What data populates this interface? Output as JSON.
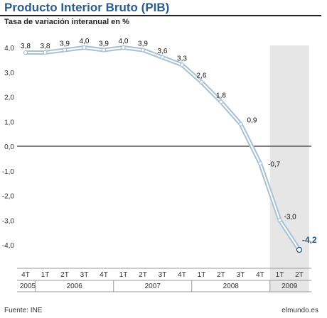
{
  "header": {
    "title": "Producto Interior Bruto (PIB)",
    "subtitle": "Tasa de variación interanual en %"
  },
  "footer": {
    "source": "Fuente: INE",
    "credit": "elmundo.es"
  },
  "colors": {
    "title": "#2a5d8f",
    "line_outer": "#a9c0d4",
    "line_inner": "#ffffff",
    "highlight_label": "#1f4f8c",
    "shaded_band": "#e6e6e6",
    "zero_line": "#555555"
  },
  "chart_data": {
    "type": "line",
    "title": "Producto Interior Bruto (PIB)",
    "ylabel": "",
    "xlabel": "",
    "ylim": [
      -5.0,
      4.0
    ],
    "yticks": [
      4.0,
      3.0,
      2.0,
      1.0,
      0.0,
      -1.0,
      -2.0,
      -3.0,
      -4.0
    ],
    "ytick_labels": [
      "4,0",
      "3,0",
      "2,0",
      "1,0",
      "0,0",
      "-1,0",
      "-2,0",
      "-3,0",
      "-4,0"
    ],
    "categories": [
      "4T",
      "1T",
      "2T",
      "3T",
      "4T",
      "1T",
      "2T",
      "3T",
      "4T",
      "1T",
      "2T",
      "3T",
      "4T",
      "1T",
      "2T"
    ],
    "years": [
      {
        "label": "2005",
        "start": 0,
        "end": 0
      },
      {
        "label": "2006",
        "start": 1,
        "end": 4
      },
      {
        "label": "2007",
        "start": 5,
        "end": 8
      },
      {
        "label": "2008",
        "start": 9,
        "end": 12
      },
      {
        "label": "2009",
        "start": 13,
        "end": 14
      }
    ],
    "shaded_year": "2009",
    "series": [
      {
        "values": [
          3.8,
          3.8,
          3.9,
          4.0,
          3.9,
          4.0,
          3.9,
          3.6,
          3.3,
          2.6,
          1.8,
          0.9,
          -0.7,
          -3.0,
          -4.2
        ],
        "labels": [
          "3,8",
          "3,8",
          "3,9",
          "4,0",
          "3,9",
          "4,0",
          "3,9",
          "3,6",
          "3,3",
          "2,6",
          "1,8",
          "0,9",
          "-0,7",
          "-3,0",
          "-4,2"
        ]
      }
    ],
    "highlight_last": true,
    "grid": false,
    "zero_line": true
  }
}
